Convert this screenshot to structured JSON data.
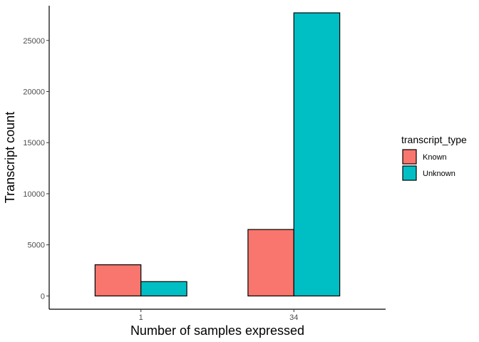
{
  "chart_data": {
    "type": "bar",
    "categories": [
      "1",
      "34"
    ],
    "series": [
      {
        "name": "Known",
        "values": [
          3050,
          6500
        ],
        "color": "#F8766D"
      },
      {
        "name": "Unknown",
        "values": [
          1400,
          27700
        ],
        "color": "#00BFC4"
      }
    ],
    "xlabel": "Number of samples expressed",
    "ylabel": "Transcript count",
    "ylim": [
      -1300,
      28400
    ],
    "yticks": [
      0,
      5000,
      10000,
      15000,
      20000,
      25000
    ],
    "ytick_labels": [
      "0",
      "5000",
      "10000",
      "15000",
      "20000",
      "25000"
    ],
    "legend": {
      "title": "transcript_type",
      "position": "right"
    },
    "grid": false
  }
}
